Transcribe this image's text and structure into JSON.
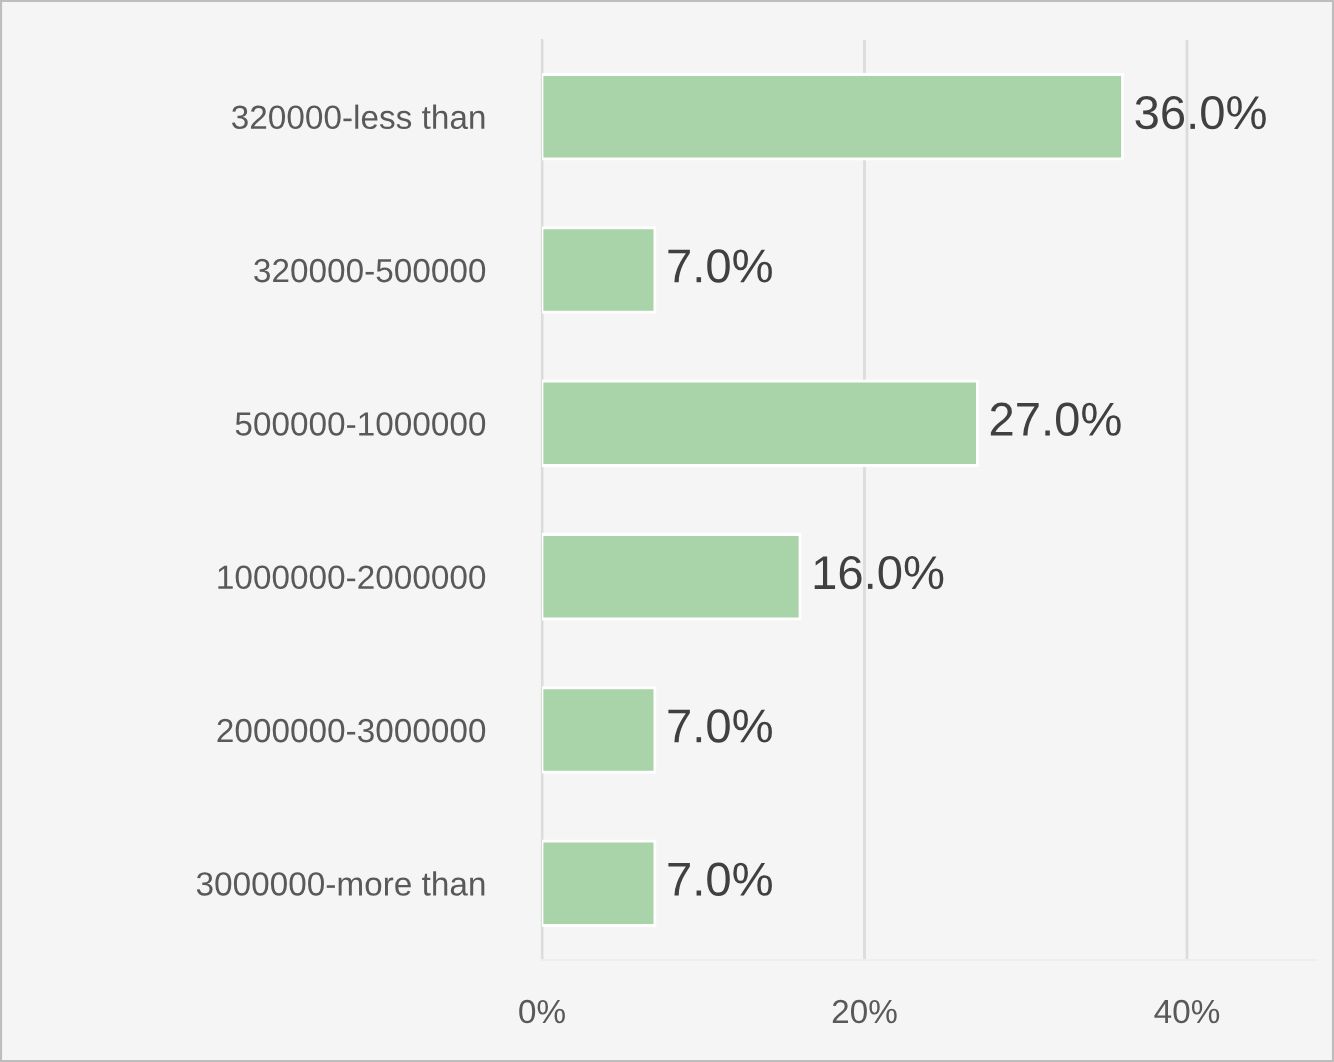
{
  "chart_data": {
    "type": "bar",
    "orientation": "horizontal",
    "categories": [
      "320000-less than",
      "320000-500000",
      "500000-1000000",
      "1000000-2000000",
      "2000000-3000000",
      "3000000-more than"
    ],
    "values": [
      36.0,
      7.0,
      27.0,
      16.0,
      7.0,
      7.0
    ],
    "value_labels": [
      "36.0%",
      "7.0%",
      "27.0%",
      "16.0%",
      "7.0%",
      "7.0%"
    ],
    "color": "#a9d3a9",
    "xlim": [
      0,
      48
    ],
    "xticks": [
      {
        "value": 0,
        "label": "0%"
      },
      {
        "value": 20,
        "label": "20%"
      },
      {
        "value": 40,
        "label": "40%"
      }
    ],
    "grid": "x"
  }
}
